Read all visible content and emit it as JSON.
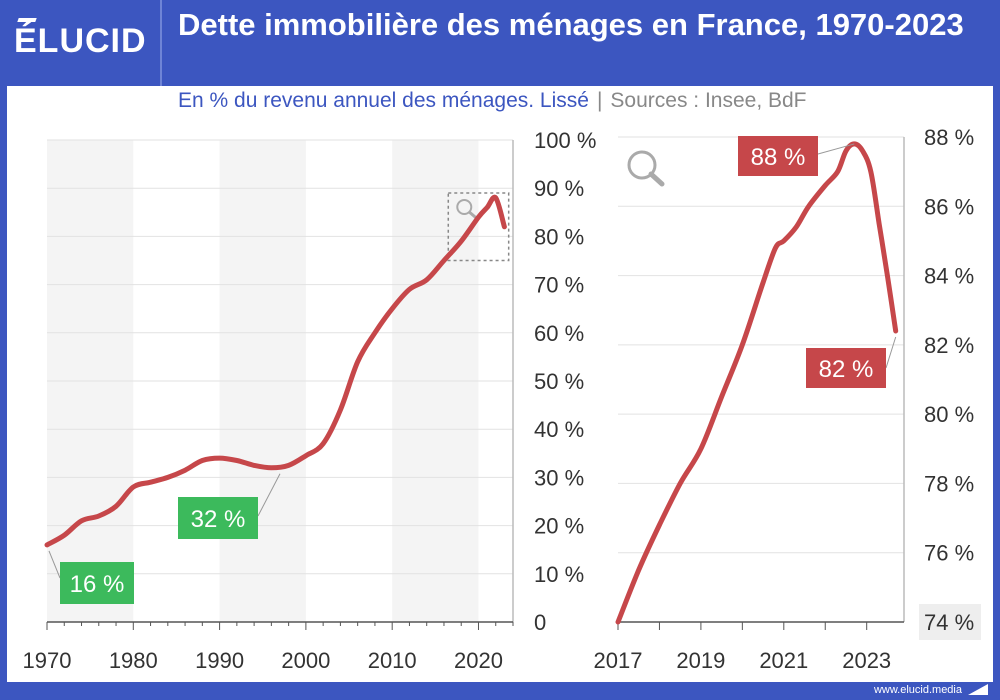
{
  "header": {
    "logo": "ÉLUCID",
    "title": "Dette immobilière des ménages en France, 1970-2023",
    "subtitle": "En % du revenu annuel des ménages. Lissé",
    "separator": "|",
    "sources": "Sources : Insee, BdF"
  },
  "footer": {
    "brand": "www.elucid.media"
  },
  "colors": {
    "brand_blue": "#3c56c0",
    "line": "#c6474a",
    "label_green": "#3cba5c",
    "label_red": "#c6474a",
    "shade": "#f4f4f4"
  },
  "chart_data": [
    {
      "type": "line",
      "series": [
        {
          "x": [
            1970,
            1972,
            1974,
            1976,
            1978,
            1980,
            1982,
            1984,
            1986,
            1988,
            1990,
            1992,
            1994,
            1996,
            1998,
            2000,
            2002,
            2004,
            2006,
            2008,
            2010,
            2012,
            2014,
            2016,
            2018,
            2020,
            2021,
            2022,
            2023
          ],
          "y": [
            16,
            18,
            21,
            22,
            24,
            28,
            29,
            30,
            31.5,
            33.5,
            34,
            33.5,
            32.5,
            32,
            32.5,
            34.5,
            37,
            44,
            54,
            60,
            65,
            69,
            71,
            75,
            79,
            84,
            86,
            88,
            82
          ]
        }
      ],
      "xlim": [
        1970,
        2024
      ],
      "ylim": [
        0,
        100
      ],
      "x_ticks": [
        "1970",
        "1980",
        "1990",
        "2000",
        "2010",
        "2020"
      ],
      "y_ticks": [
        "0",
        "10 %",
        "20 %",
        "30 %",
        "40 %",
        "50 %",
        "60 %",
        "70 %",
        "80 %",
        "90 %",
        "100 %"
      ],
      "shaded_decades": [
        [
          1970,
          1980
        ],
        [
          1990,
          2000
        ],
        [
          2010,
          2020
        ]
      ],
      "grid": true,
      "annotations": [
        {
          "text": "16 %",
          "x": 1970,
          "y": 16,
          "style": "green"
        },
        {
          "text": "32 %",
          "x": 1997,
          "y": 32,
          "style": "green"
        }
      ],
      "zoom_box": {
        "x": [
          2016.5,
          2023.5
        ],
        "y": [
          75,
          89
        ]
      }
    },
    {
      "type": "line",
      "series": [
        {
          "x": [
            2017.0,
            2017.5,
            2018.0,
            2018.5,
            2019.0,
            2019.5,
            2020.0,
            2020.5,
            2020.8,
            2021.0,
            2021.3,
            2021.6,
            2022.0,
            2022.3,
            2022.5,
            2022.7,
            2022.9,
            2023.1,
            2023.3,
            2023.5,
            2023.7
          ],
          "y": [
            74.0,
            75.5,
            76.8,
            78.0,
            79.0,
            80.5,
            82.0,
            83.8,
            84.8,
            85.0,
            85.4,
            86.0,
            86.6,
            87.0,
            87.6,
            87.8,
            87.6,
            87.0,
            85.5,
            84.0,
            82.4
          ]
        }
      ],
      "xlim": [
        2017,
        2023.9
      ],
      "ylim": [
        74,
        88
      ],
      "x_ticks": [
        "2017",
        "2019",
        "2021",
        "2023"
      ],
      "y_ticks": [
        "74 %",
        "76 %",
        "78 %",
        "80 %",
        "82 %",
        "84 %",
        "86 %",
        "88 %"
      ],
      "grid": true,
      "annotations": [
        {
          "text": "88 %",
          "x": 2022.7,
          "y": 87.8,
          "style": "red"
        },
        {
          "text": "82 %",
          "x": 2023.7,
          "y": 82.4,
          "style": "red"
        }
      ]
    }
  ]
}
